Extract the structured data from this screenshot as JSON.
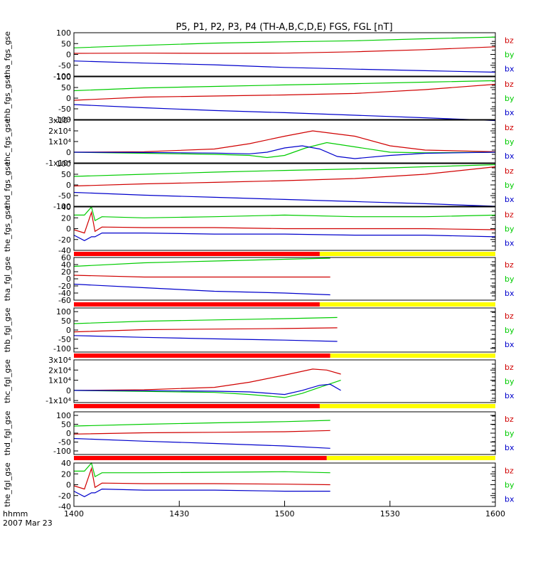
{
  "chart_data": {
    "type": "line",
    "title": "P5, P1, P2, P3, P4 (TH-A,B,C,D,E) FGS, FGL [nT]",
    "time_label_line1": "hhmm",
    "time_label_line2": "2007 Mar 23",
    "x_ticks": [
      "1400",
      "1430",
      "1500",
      "1530",
      "1600"
    ],
    "xlim_minutes": [
      0,
      120
    ],
    "colors": {
      "bz": "#d00000",
      "by": "#00cc00",
      "bx": "#0000cc",
      "bar_red": "#ff0000",
      "bar_yellow": "#ffff00"
    },
    "legend": [
      "bz",
      "by",
      "bx"
    ],
    "bars": [
      {
        "red_until": 70,
        "yellow_until": 120
      },
      {
        "red_until": 70,
        "yellow_until": 120
      },
      {
        "red_until": 73,
        "yellow_until": 120
      },
      {
        "red_until": 70,
        "yellow_until": 120
      },
      {
        "red_until": 72,
        "yellow_until": 120
      }
    ],
    "panels": [
      {
        "ylabel": "tha_fgs_gse",
        "ylim": [
          -100,
          100
        ],
        "ticks": [
          "100",
          "50",
          "0",
          "-50",
          "-100"
        ],
        "tick_values": [
          100,
          50,
          0,
          -50,
          -100
        ],
        "series": [
          {
            "name": "bz",
            "x": [
              0,
              20,
              40,
              60,
              80,
              100,
              120
            ],
            "values": [
              5,
              6,
              5,
              6,
              12,
              22,
              35
            ]
          },
          {
            "name": "by",
            "x": [
              0,
              20,
              40,
              60,
              80,
              100,
              120
            ],
            "values": [
              30,
              42,
              52,
              58,
              63,
              72,
              80
            ]
          },
          {
            "name": "bx",
            "x": [
              0,
              20,
              40,
              60,
              80,
              100,
              120
            ],
            "values": [
              -30,
              -40,
              -48,
              -60,
              -68,
              -75,
              -82
            ]
          }
        ]
      },
      {
        "ylabel": "thb_fgs_gse",
        "ylim": [
          -100,
          100
        ],
        "ticks": [
          "100",
          "50",
          "0",
          "-50",
          "-100"
        ],
        "tick_values": [
          100,
          50,
          0,
          -50,
          -100
        ],
        "series": [
          {
            "name": "bz",
            "x": [
              0,
              20,
              40,
              60,
              80,
              100,
              120
            ],
            "values": [
              -10,
              5,
              10,
              15,
              22,
              40,
              65
            ]
          },
          {
            "name": "by",
            "x": [
              0,
              20,
              40,
              60,
              80,
              100,
              120
            ],
            "values": [
              35,
              48,
              55,
              62,
              68,
              75,
              82
            ]
          },
          {
            "name": "bx",
            "x": [
              0,
              20,
              40,
              60,
              80,
              100,
              120
            ],
            "values": [
              -30,
              -45,
              -58,
              -68,
              -80,
              -92,
              -105
            ]
          }
        ]
      },
      {
        "ylabel": "thc_fgs_gse",
        "ylim": [
          -10000,
          30000
        ],
        "ticks": [
          "3x10⁴",
          "2x10⁴",
          "1x10⁴",
          "0",
          "-1x10⁴"
        ],
        "tick_values": [
          30000,
          20000,
          10000,
          0,
          -10000
        ],
        "series": [
          {
            "name": "bz",
            "x": [
              0,
              20,
              40,
              50,
              60,
              68,
              80,
              90,
              100,
              120
            ],
            "values": [
              0,
              500,
              3000,
              8000,
              15000,
              20000,
              15000,
              6000,
              2000,
              500
            ]
          },
          {
            "name": "by",
            "x": [
              0,
              20,
              40,
              50,
              55,
              60,
              66,
              72,
              80,
              90,
              100,
              120
            ],
            "values": [
              0,
              -1000,
              -2000,
              -3000,
              -5000,
              -3000,
              4000,
              9000,
              5000,
              0,
              -500,
              0
            ]
          },
          {
            "name": "bx",
            "x": [
              0,
              20,
              40,
              50,
              55,
              60,
              65,
              70,
              75,
              80,
              90,
              100,
              120
            ],
            "values": [
              0,
              -300,
              -800,
              -1500,
              0,
              4000,
              6000,
              3000,
              -4000,
              -6000,
              -3000,
              -1000,
              0
            ]
          }
        ]
      },
      {
        "ylabel": "thd_fgs_gse",
        "ylim": [
          -100,
          100
        ],
        "ticks": [
          "100",
          "50",
          "0",
          "-50",
          "-100"
        ],
        "tick_values": [
          100,
          50,
          0,
          -50,
          -100
        ],
        "series": [
          {
            "name": "bz",
            "x": [
              0,
              20,
              40,
              60,
              80,
              100,
              120
            ],
            "values": [
              -5,
              5,
              12,
              20,
              30,
              50,
              85
            ]
          },
          {
            "name": "by",
            "x": [
              0,
              20,
              40,
              60,
              80,
              100,
              120
            ],
            "values": [
              40,
              50,
              60,
              68,
              75,
              85,
              95
            ]
          },
          {
            "name": "bx",
            "x": [
              0,
              20,
              40,
              60,
              80,
              100,
              120
            ],
            "values": [
              -35,
              -48,
              -58,
              -68,
              -78,
              -88,
              -100
            ]
          }
        ]
      },
      {
        "ylabel": "the_fgs_gse",
        "ylim": [
          -40,
          40
        ],
        "ticks": [
          "40",
          "20",
          "0",
          "-20",
          "-40"
        ],
        "tick_values": [
          40,
          20,
          0,
          -20,
          -40
        ],
        "series": [
          {
            "name": "bz",
            "x": [
              0,
              3,
              5,
              6,
              8,
              20,
              40,
              60,
              80,
              100,
              120
            ],
            "values": [
              -2,
              -8,
              30,
              -5,
              3,
              2,
              2,
              0,
              0,
              0,
              -2
            ]
          },
          {
            "name": "by",
            "x": [
              0,
              3,
              5,
              6,
              8,
              20,
              40,
              60,
              80,
              100,
              120
            ],
            "values": [
              25,
              25,
              40,
              15,
              22,
              20,
              22,
              25,
              22,
              22,
              25
            ]
          },
          {
            "name": "bx",
            "x": [
              0,
              3,
              5,
              6,
              8,
              20,
              40,
              60,
              80,
              100,
              120
            ],
            "values": [
              -12,
              -22,
              -15,
              -15,
              -8,
              -8,
              -10,
              -10,
              -12,
              -12,
              -15
            ]
          }
        ]
      },
      {
        "ylabel": "tha_fgl_gse",
        "ylim": [
          -60,
          60
        ],
        "ticks": [
          "60",
          "40",
          "20",
          "0",
          "-20",
          "-40",
          "-60"
        ],
        "tick_values": [
          60,
          40,
          20,
          0,
          -20,
          -40,
          -60
        ],
        "series": [
          {
            "name": "bz",
            "x": [
              0,
              20,
              40,
              60,
              73
            ],
            "values": [
              10,
              5,
              5,
              5,
              5
            ]
          },
          {
            "name": "by",
            "x": [
              0,
              20,
              40,
              60,
              73
            ],
            "values": [
              35,
              45,
              50,
              55,
              58
            ]
          },
          {
            "name": "bx",
            "x": [
              0,
              20,
              40,
              60,
              73
            ],
            "values": [
              -15,
              -25,
              -35,
              -40,
              -45
            ]
          }
        ]
      },
      {
        "ylabel": "thb_fgl_gse",
        "ylim": [
          -120,
          120
        ],
        "ticks": [
          "100",
          "50",
          "0",
          "-50",
          "-100"
        ],
        "tick_values": [
          100,
          50,
          0,
          -50,
          -100
        ],
        "series": [
          {
            "name": "bz",
            "x": [
              0,
              20,
              40,
              60,
              75
            ],
            "values": [
              -10,
              2,
              5,
              8,
              12
            ]
          },
          {
            "name": "by",
            "x": [
              0,
              20,
              40,
              60,
              75
            ],
            "values": [
              35,
              48,
              55,
              62,
              68
            ]
          },
          {
            "name": "bx",
            "x": [
              0,
              20,
              40,
              60,
              75
            ],
            "values": [
              -30,
              -40,
              -48,
              -55,
              -62
            ]
          }
        ]
      },
      {
        "ylabel": "thc_fgl_gse",
        "ylim": [
          -12000,
          30000
        ],
        "ticks": [
          "3x10⁴",
          "2x10⁴",
          "1x10⁴",
          "0",
          "-1x10⁴"
        ],
        "tick_values": [
          30000,
          20000,
          10000,
          0,
          -10000
        ],
        "series": [
          {
            "name": "bz",
            "x": [
              0,
              20,
              40,
              50,
              60,
              68,
              72,
              76
            ],
            "values": [
              0,
              600,
              3000,
              8000,
              15000,
              21000,
              20000,
              16000
            ]
          },
          {
            "name": "by",
            "x": [
              0,
              20,
              40,
              50,
              60,
              65,
              70,
              76
            ],
            "values": [
              0,
              -1000,
              -2000,
              -4000,
              -7000,
              -3000,
              3000,
              10000
            ]
          },
          {
            "name": "bx",
            "x": [
              0,
              20,
              40,
              50,
              60,
              65,
              70,
              73,
              76
            ],
            "values": [
              0,
              -300,
              -800,
              -1500,
              -4000,
              0,
              5000,
              6000,
              0
            ]
          }
        ]
      },
      {
        "ylabel": "thd_fgl_gse",
        "ylim": [
          -120,
          120
        ],
        "ticks": [
          "100",
          "50",
          "0",
          "-50",
          "-100"
        ],
        "tick_values": [
          100,
          50,
          0,
          -50,
          -100
        ],
        "series": [
          {
            "name": "bz",
            "x": [
              0,
              20,
              40,
              60,
              73
            ],
            "values": [
              -5,
              2,
              5,
              8,
              15
            ]
          },
          {
            "name": "by",
            "x": [
              0,
              20,
              40,
              60,
              73
            ],
            "values": [
              40,
              50,
              58,
              65,
              72
            ]
          },
          {
            "name": "bx",
            "x": [
              0,
              20,
              40,
              60,
              73
            ],
            "values": [
              -30,
              -45,
              -58,
              -72,
              -85
            ]
          }
        ]
      },
      {
        "ylabel": "the_fgl_gse",
        "ylim": [
          -40,
          40
        ],
        "ticks": [
          "40",
          "20",
          "0",
          "-20",
          "-40"
        ],
        "tick_values": [
          40,
          20,
          0,
          -20,
          -40
        ],
        "series": [
          {
            "name": "bz",
            "x": [
              0,
              3,
              5,
              6,
              8,
              20,
              40,
              60,
              73
            ],
            "values": [
              -2,
              -8,
              30,
              -5,
              3,
              2,
              2,
              1,
              0
            ]
          },
          {
            "name": "by",
            "x": [
              0,
              3,
              5,
              6,
              8,
              20,
              40,
              60,
              73
            ],
            "values": [
              25,
              25,
              40,
              15,
              22,
              22,
              23,
              24,
              22
            ]
          },
          {
            "name": "bx",
            "x": [
              0,
              3,
              5,
              6,
              8,
              20,
              40,
              60,
              73
            ],
            "values": [
              -12,
              -22,
              -15,
              -15,
              -8,
              -10,
              -10,
              -12,
              -12
            ]
          }
        ]
      }
    ]
  }
}
